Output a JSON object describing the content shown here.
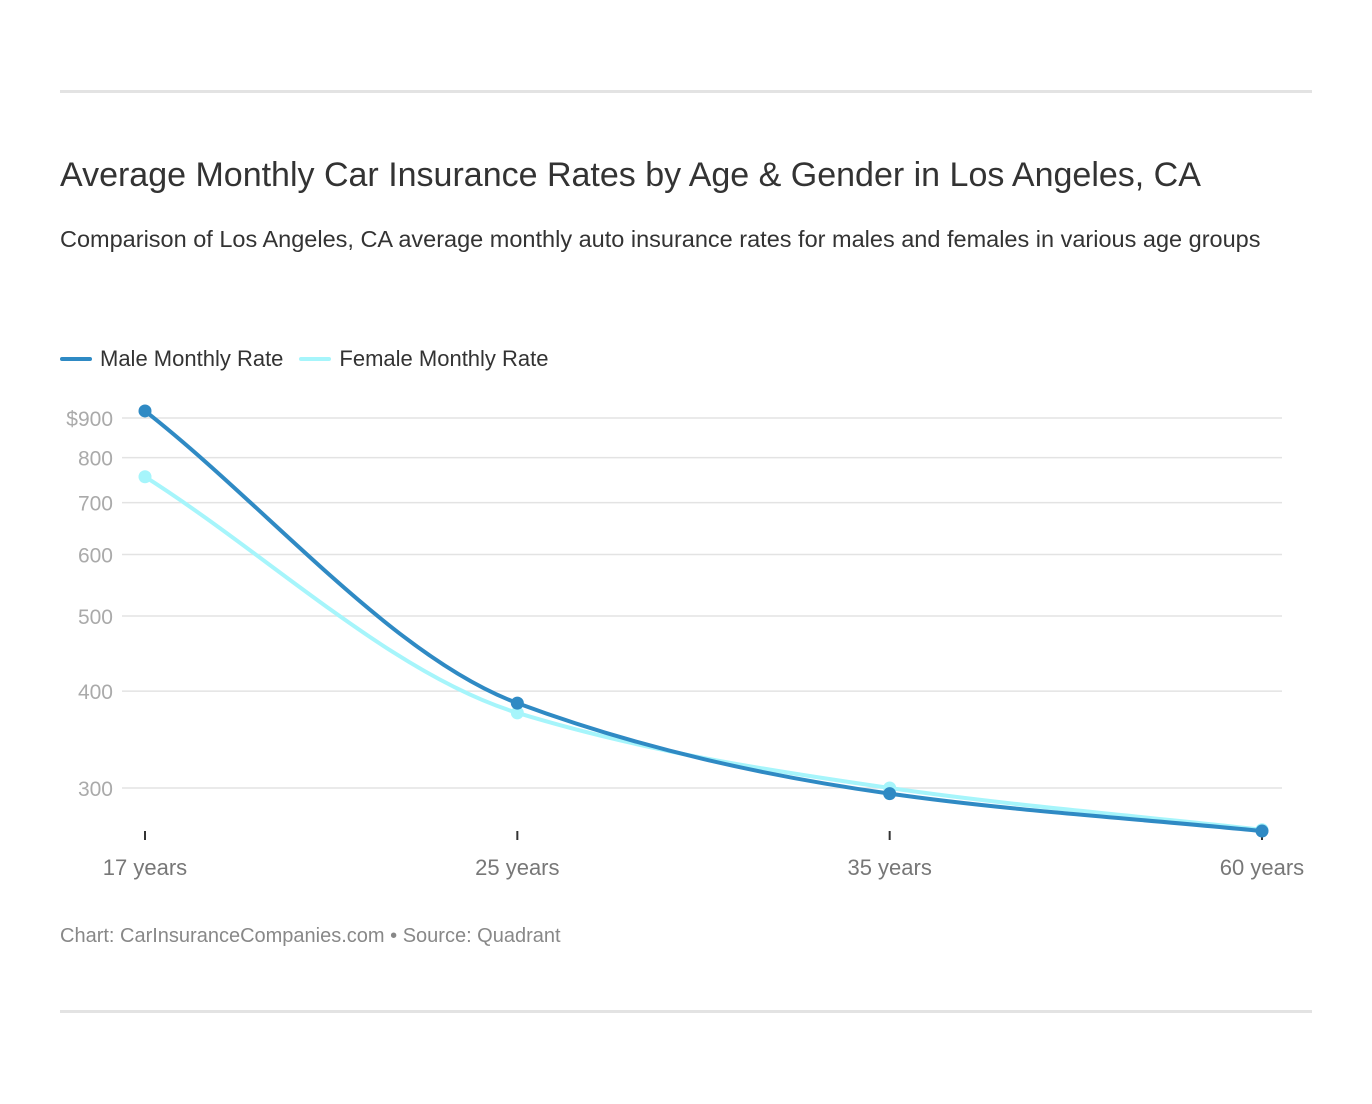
{
  "title": "Average Monthly Car Insurance Rates by Age & Gender in Los Angeles, CA",
  "subtitle": "Comparison of Los Angeles, CA average monthly auto insurance rates for males and females in various age groups",
  "footer": "Chart: CarInsuranceCompanies.com • Source: Quadrant",
  "chart_data": {
    "type": "line",
    "title": "Average Monthly Car Insurance Rates by Age & Gender in Los Angeles, CA",
    "xlabel": "",
    "ylabel": "",
    "y_scale": "log",
    "ylim": [
      260,
      920
    ],
    "grid": true,
    "legend_position": "top-left",
    "categories": [
      "17 years",
      "25 years",
      "35 years",
      "60 years"
    ],
    "y_ticks": [
      300,
      400,
      500,
      600,
      700,
      800,
      900
    ],
    "y_tick_labels": [
      "300",
      "400",
      "500",
      "600",
      "700",
      "800",
      "$900"
    ],
    "series": [
      {
        "name": "Male Monthly Rate",
        "color": "#2f8ac4",
        "values": [
          919,
          386,
          295,
          264
        ]
      },
      {
        "name": "Female Monthly Rate",
        "color": "#a6f5fb",
        "values": [
          756,
          375,
          300,
          265
        ]
      }
    ]
  }
}
